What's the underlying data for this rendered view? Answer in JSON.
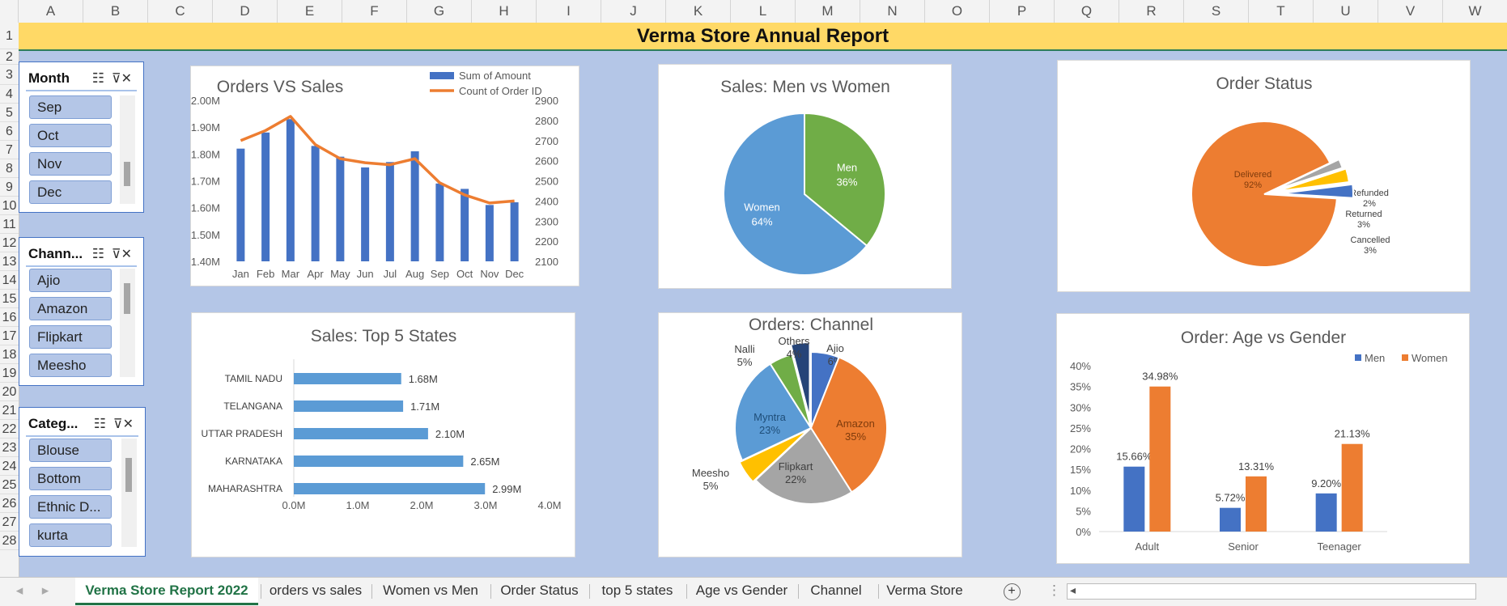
{
  "column_headers": [
    "A",
    "B",
    "C",
    "D",
    "E",
    "F",
    "G",
    "H",
    "I",
    "J",
    "K",
    "L",
    "M",
    "N",
    "O",
    "P",
    "Q",
    "R",
    "S",
    "T",
    "U",
    "V",
    "W"
  ],
  "row_headers": [
    "1",
    "2",
    "3",
    "4",
    "5",
    "6",
    "7",
    "8",
    "9",
    "10",
    "11",
    "12",
    "13",
    "14",
    "15",
    "16",
    "17",
    "18",
    "19",
    "20",
    "21",
    "22",
    "23",
    "24",
    "25",
    "26",
    "27",
    "28"
  ],
  "report_title": "Verma Store Annual Report",
  "slicers": {
    "month": {
      "title": "Month",
      "items": [
        "Sep",
        "Oct",
        "Nov",
        "Dec"
      ]
    },
    "channel": {
      "title": "Chann...",
      "items": [
        "Ajio",
        "Amazon",
        "Flipkart",
        "Meesho"
      ]
    },
    "category": {
      "title": "Categ...",
      "items": [
        "Blouse",
        "Bottom",
        "Ethnic D...",
        "kurta"
      ]
    },
    "multiselect_icon": "multi-select-icon",
    "clear_filter_icon": "clear-filter-icon"
  },
  "chart_data": [
    {
      "type": "bar",
      "title": "Orders VS Sales",
      "categories": [
        "Jan",
        "Feb",
        "Mar",
        "Apr",
        "May",
        "Jun",
        "Jul",
        "Aug",
        "Sep",
        "Oct",
        "Nov",
        "Dec"
      ],
      "series": [
        {
          "name": "Sum of Amount",
          "type": "bar",
          "axis": "left",
          "color": "#4472c4",
          "values": [
            1.82,
            1.88,
            1.93,
            1.83,
            1.79,
            1.75,
            1.77,
            1.81,
            1.69,
            1.67,
            1.61,
            1.62
          ]
        },
        {
          "name": "Count of Order ID",
          "type": "line",
          "axis": "right",
          "color": "#ed7d31",
          "values": [
            2700,
            2750,
            2820,
            2680,
            2610,
            2590,
            2580,
            2610,
            2490,
            2430,
            2390,
            2400
          ]
        }
      ],
      "ylim": [
        1.4,
        2.0
      ],
      "y_ticks": [
        "1.40M",
        "1.50M",
        "1.60M",
        "1.70M",
        "1.80M",
        "1.90M",
        "2.00M"
      ],
      "y2lim": [
        2100,
        2900
      ],
      "y2_ticks": [
        "2100",
        "2200",
        "2300",
        "2400",
        "2500",
        "2600",
        "2700",
        "2800",
        "2900"
      ],
      "legend": "top-right"
    },
    {
      "type": "pie",
      "title": "Sales: Men vs Women",
      "slices": [
        {
          "label": "Men",
          "value": 36,
          "pct": "36%",
          "color": "#70ad47"
        },
        {
          "label": "Women",
          "value": 64,
          "pct": "64%",
          "color": "#5b9bd5"
        }
      ]
    },
    {
      "type": "pie",
      "title": "Order Status",
      "slices": [
        {
          "label": "Delivered",
          "value": 92,
          "pct": "92%",
          "color": "#ed7d31"
        },
        {
          "label": "Refunded",
          "value": 2,
          "pct": "2%",
          "color": "#a5a5a5"
        },
        {
          "label": "Returned",
          "value": 3,
          "pct": "3%",
          "color": "#ffc000"
        },
        {
          "label": "Cancelled",
          "value": 3,
          "pct": "3%",
          "color": "#4472c4"
        }
      ]
    },
    {
      "type": "bar",
      "orientation": "horizontal",
      "title": "Sales: Top 5 States",
      "categories": [
        "TAMIL NADU",
        "TELANGANA",
        "UTTAR PRADESH",
        "KARNATAKA",
        "MAHARASHTRA"
      ],
      "values": [
        1.68,
        1.71,
        2.1,
        2.65,
        2.99
      ],
      "data_labels": [
        "1.68M",
        "1.71M",
        "2.10M",
        "2.65M",
        "2.99M"
      ],
      "xlim": [
        0,
        4
      ],
      "x_ticks": [
        "0.0M",
        "1.0M",
        "2.0M",
        "3.0M",
        "4.0M"
      ],
      "color": "#5b9bd5"
    },
    {
      "type": "pie",
      "title": "Orders: Channel",
      "slices": [
        {
          "label": "Ajio",
          "value": 6,
          "pct": "6%",
          "color": "#4472c4"
        },
        {
          "label": "Amazon",
          "value": 35,
          "pct": "35%",
          "color": "#ed7d31"
        },
        {
          "label": "Flipkart",
          "value": 22,
          "pct": "22%",
          "color": "#a5a5a5"
        },
        {
          "label": "Meesho",
          "value": 5,
          "pct": "5%",
          "color": "#ffc000"
        },
        {
          "label": "Myntra",
          "value": 23,
          "pct": "23%",
          "color": "#5b9bd5"
        },
        {
          "label": "Nalli",
          "value": 5,
          "pct": "5%",
          "color": "#70ad47"
        },
        {
          "label": "Others",
          "value": 4,
          "pct": "4%",
          "color": "#264478"
        }
      ]
    },
    {
      "type": "bar",
      "title": "Order: Age vs Gender",
      "categories": [
        "Adult",
        "Senior",
        "Teenager"
      ],
      "series": [
        {
          "name": "Men",
          "color": "#4472c4",
          "values": [
            15.66,
            5.72,
            9.2
          ],
          "labels": [
            "15.66%",
            "5.72%",
            "9.20%"
          ]
        },
        {
          "name": "Women",
          "color": "#ed7d31",
          "values": [
            34.98,
            13.31,
            21.13
          ],
          "labels": [
            "34.98%",
            "13.31%",
            "21.13%"
          ]
        }
      ],
      "ylim": [
        0,
        40
      ],
      "y_ticks": [
        "0%",
        "5%",
        "10%",
        "15%",
        "20%",
        "25%",
        "30%",
        "35%",
        "40%"
      ],
      "legend": "top-right"
    }
  ],
  "sheet_tabs": [
    {
      "label": "Verma Store Report 2022",
      "active": true
    },
    {
      "label": "orders vs sales",
      "active": false
    },
    {
      "label": "Women vs Men",
      "active": false
    },
    {
      "label": "Order Status",
      "active": false
    },
    {
      "label": "top 5 states",
      "active": false
    },
    {
      "label": "Age vs Gender",
      "active": false
    },
    {
      "label": "Channel",
      "active": false
    },
    {
      "label": "Verma Store",
      "active": false
    }
  ],
  "nav": {
    "prev_icon": "tab-scroll-left-icon",
    "next_icon": "tab-scroll-right-icon",
    "add_sheet_icon": "plus-icon",
    "more_icon": "vertical-dots-icon",
    "hscroll_left_icon": "scroll-left-icon"
  }
}
